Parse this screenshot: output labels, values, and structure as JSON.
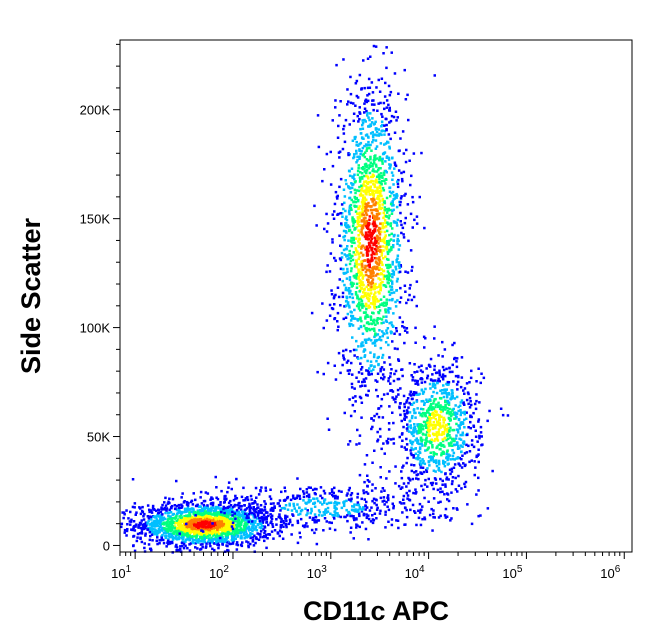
{
  "chart_data": {
    "type": "scatter",
    "title": "",
    "xlabel": "CD11c APC",
    "ylabel": "Side Scatter",
    "x_scale": "log",
    "xlim": [
      7,
      1200000
    ],
    "ylim": [
      -3000,
      232000
    ],
    "grid": false,
    "x_ticks": [
      {
        "value": 10,
        "base": "10",
        "exp": "1"
      },
      {
        "value": 100,
        "base": "10",
        "exp": "2"
      },
      {
        "value": 1000,
        "base": "10",
        "exp": "3"
      },
      {
        "value": 10000,
        "base": "10",
        "exp": "4"
      },
      {
        "value": 100000,
        "base": "10",
        "exp": "5"
      },
      {
        "value": 1000000,
        "base": "10",
        "exp": "6"
      }
    ],
    "y_ticks": [
      {
        "value": 0,
        "label": "0"
      },
      {
        "value": 50000,
        "label": "50K"
      },
      {
        "value": 100000,
        "label": "100K"
      },
      {
        "value": 150000,
        "label": "150K"
      },
      {
        "value": 200000,
        "label": "200K"
      }
    ],
    "density_colormap": [
      "#0000ff",
      "#00bfff",
      "#00ff80",
      "#ffff00",
      "#ff8000",
      "#ff0000"
    ],
    "populations": [
      {
        "center_x": 50,
        "center_y": 10000,
        "spread_log_x": 0.35,
        "spread_y": 5000,
        "density": "high"
      },
      {
        "center_x": 2500,
        "center_y": 140000,
        "spread_log_x": 0.18,
        "spread_y": 35000,
        "density": "high"
      },
      {
        "center_x": 12000,
        "center_y": 55000,
        "spread_log_x": 0.22,
        "spread_y": 15000,
        "density": "medium"
      },
      {
        "center_x": 800,
        "center_y": 18000,
        "spread_log_x": 0.6,
        "spread_y": 6000,
        "density": "low"
      }
    ]
  }
}
